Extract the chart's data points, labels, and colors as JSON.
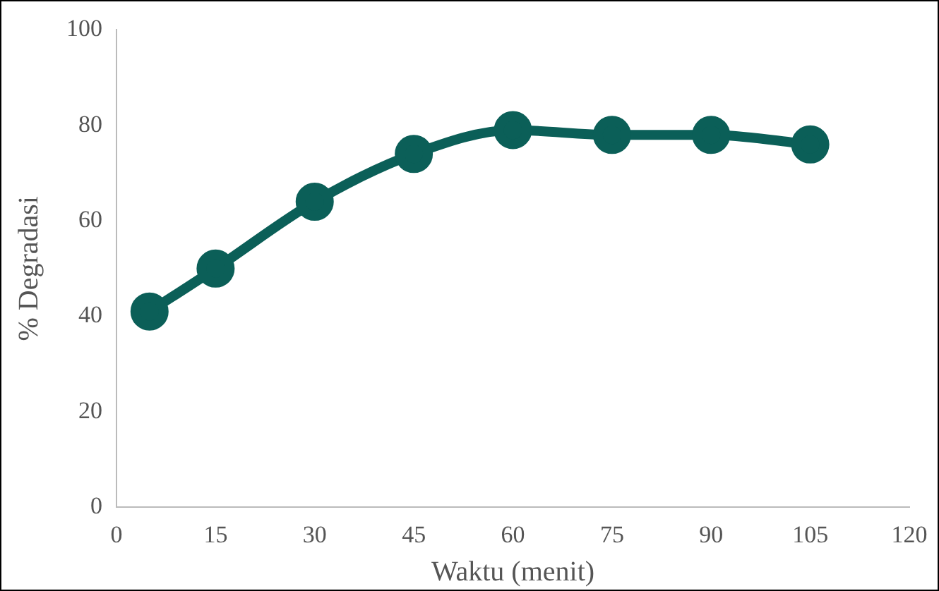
{
  "chart_data": {
    "type": "line",
    "xlabel": "Waktu (menit)",
    "ylabel": "% Degradasi",
    "x": [
      5,
      15,
      30,
      45,
      60,
      75,
      90,
      105
    ],
    "series": [
      {
        "color": "#0b5f58",
        "values": [
          41,
          50,
          64,
          74,
          79,
          78,
          78,
          76
        ]
      }
    ],
    "xlim": [
      0,
      120
    ],
    "xticks": [
      0,
      15,
      30,
      45,
      60,
      75,
      90,
      105,
      120
    ],
    "ylim": [
      0,
      100
    ],
    "yticks": [
      0,
      20,
      40,
      60,
      80,
      100
    ],
    "grid": false,
    "legend": false,
    "marker": "circle",
    "line_style": "solid"
  }
}
